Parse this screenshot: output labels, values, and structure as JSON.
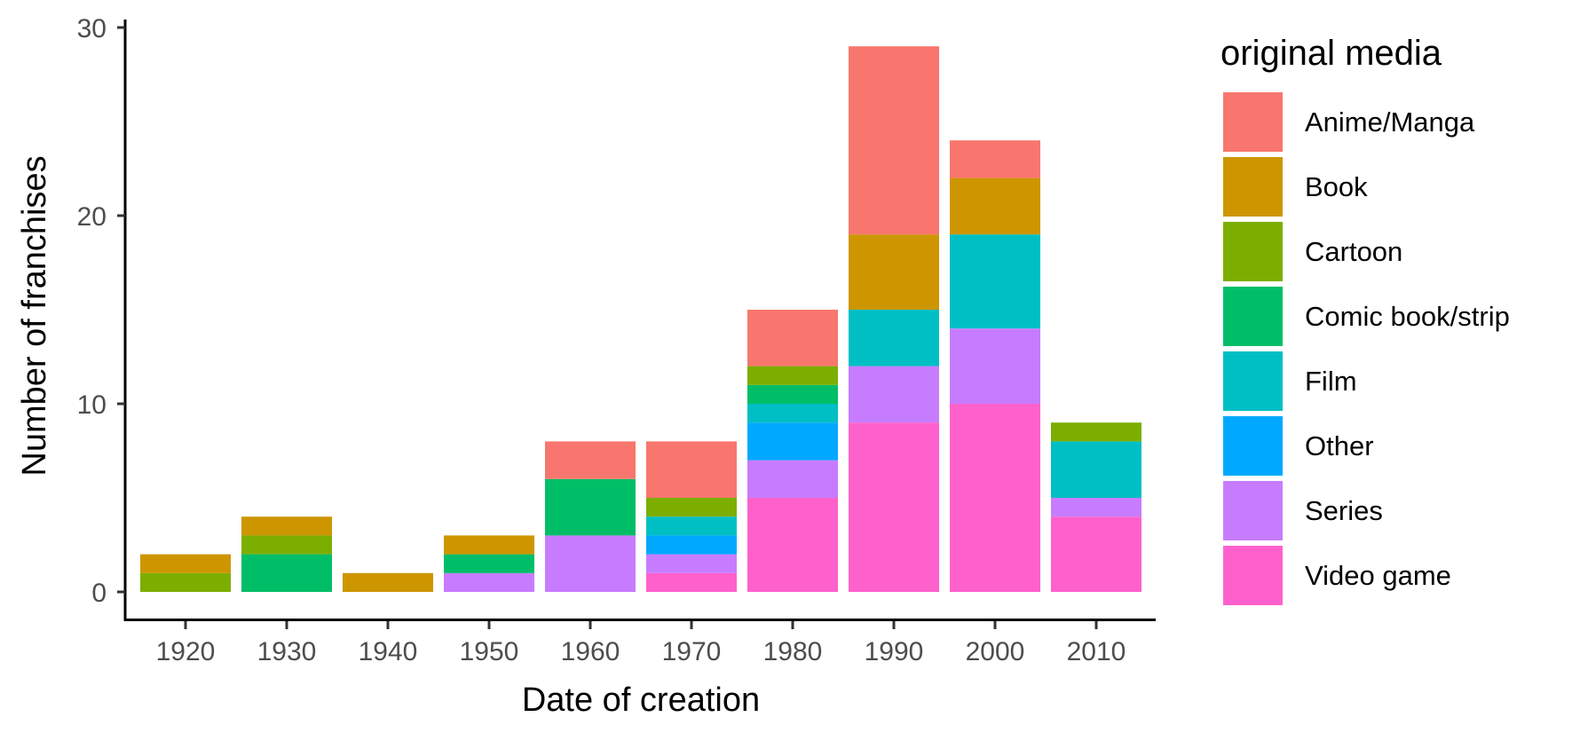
{
  "chart_data": {
    "type": "bar",
    "stacked": true,
    "xlabel": "Date of creation",
    "ylabel": "Number of franchises",
    "categories": [
      "1920",
      "1930",
      "1940",
      "1950",
      "1960",
      "1970",
      "1980",
      "1990",
      "2000",
      "2010"
    ],
    "ylim": [
      0,
      30
    ],
    "yticks": [
      0,
      10,
      20,
      30
    ],
    "grid": false,
    "legend": {
      "title": "original media",
      "position": "right"
    },
    "series": [
      {
        "name": "Anime/Manga",
        "color": "#F8766D",
        "values": [
          0,
          0,
          0,
          0,
          2,
          3,
          3,
          10,
          2,
          0
        ]
      },
      {
        "name": "Book",
        "color": "#CD9600",
        "values": [
          1,
          1,
          1,
          1,
          0,
          0,
          0,
          4,
          3,
          0
        ]
      },
      {
        "name": "Cartoon",
        "color": "#7CAE00",
        "values": [
          1,
          1,
          0,
          0,
          0,
          1,
          1,
          0,
          0,
          1
        ]
      },
      {
        "name": "Comic book/strip",
        "color": "#00BE67",
        "values": [
          0,
          2,
          0,
          1,
          3,
          0,
          1,
          0,
          0,
          0
        ]
      },
      {
        "name": "Film",
        "color": "#00BFC4",
        "values": [
          0,
          0,
          0,
          0,
          0,
          1,
          1,
          3,
          5,
          3
        ]
      },
      {
        "name": "Other",
        "color": "#00A9FF",
        "values": [
          0,
          0,
          0,
          0,
          0,
          1,
          2,
          0,
          0,
          0
        ]
      },
      {
        "name": "Series",
        "color": "#C77CFF",
        "values": [
          0,
          0,
          0,
          1,
          3,
          1,
          2,
          3,
          4,
          1
        ]
      },
      {
        "name": "Video game",
        "color": "#FF61CC",
        "values": [
          0,
          0,
          0,
          0,
          0,
          1,
          5,
          9,
          10,
          4
        ]
      }
    ]
  }
}
